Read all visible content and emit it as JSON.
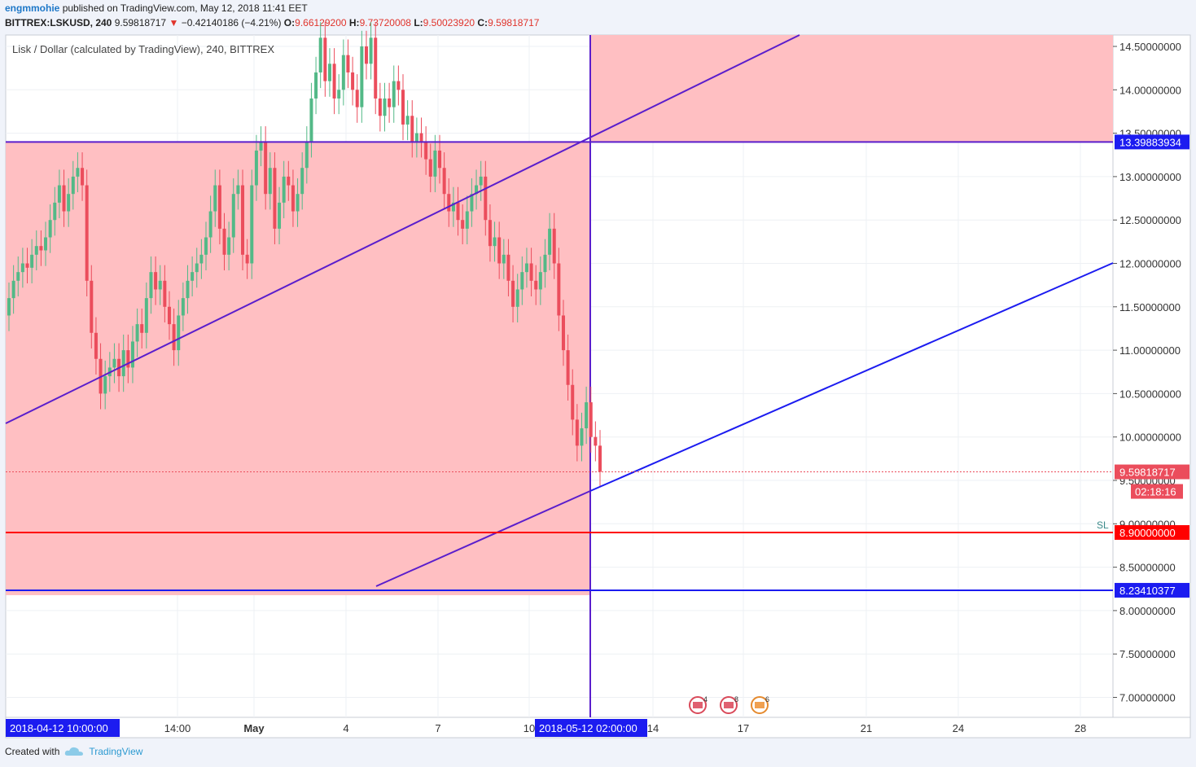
{
  "header": {
    "author": "engmmohie",
    "published": "published on TradingView.com, May 12, 2018 11:41 EET",
    "symbol": "BITTREX:LSKUSD, 240",
    "last": "9.59818717",
    "change": "−0.42140186 (−4.21%)",
    "o_label": "O:",
    "o": "9.66129200",
    "h_label": "H:",
    "h": "9.73720008",
    "l_label": "L:",
    "l": "9.50023920",
    "c_label": "C:",
    "c": "9.59818717"
  },
  "footer": {
    "created_with": "Created with",
    "brand": "TradingView"
  },
  "colors": {
    "up": "#53b987",
    "down": "#eb4d5c",
    "zone": "#ffbfc2",
    "blue_line": "#1c1cf0",
    "purple_line": "#5a1ecc",
    "stop": "#ff0000",
    "axis_label_bg": "#1c1cf0"
  },
  "chart_data": {
    "type": "candlestick",
    "title": "Lisk / Dollar (calculated by TradingView), 240, BITTREX",
    "ylim": [
      6.75,
      14.7
    ],
    "y_ticks": [
      "14.50000000",
      "14.00000000",
      "13.50000000",
      "13.00000000",
      "12.50000000",
      "12.00000000",
      "11.50000000",
      "11.00000000",
      "10.50000000",
      "10.00000000",
      "9.50000000",
      "9.00000000",
      "8.50000000",
      "8.00000000",
      "7.50000000",
      "7.00000000"
    ],
    "x_ticks": [
      "14:00",
      "May",
      "4",
      "7",
      "10",
      "14",
      "17",
      "21",
      "24",
      "28"
    ],
    "horizontal_levels": [
      {
        "name": "upper-level",
        "value": 13.39883934,
        "label": "13.39883934"
      },
      {
        "name": "stop-loss",
        "value": 8.9,
        "label": "8.90000000",
        "tag": "SL"
      },
      {
        "name": "lower-level",
        "value": 8.23410377,
        "label": "8.23410377"
      }
    ],
    "last_price": {
      "value": 9.59818717,
      "label": "9.59818717",
      "countdown": "02:18:16"
    },
    "x_markers": {
      "start": "2018-04-12 10:00:00",
      "end": "2018-05-12 02:00:00"
    },
    "event_badges": [
      {
        "count": "4"
      },
      {
        "count": "8"
      },
      {
        "count": "6"
      }
    ],
    "candle_closes": [
      11.6,
      11.8,
      11.9,
      12.0,
      11.95,
      12.1,
      12.2,
      12.15,
      12.3,
      12.5,
      12.7,
      12.9,
      12.6,
      12.8,
      13.0,
      13.1,
      12.9,
      11.8,
      11.2,
      10.9,
      10.5,
      10.7,
      10.8,
      10.9,
      10.7,
      11.0,
      10.8,
      11.1,
      11.3,
      11.2,
      11.6,
      11.9,
      11.7,
      11.8,
      11.5,
      11.3,
      11.0,
      11.4,
      11.6,
      11.8,
      11.9,
      12.0,
      12.1,
      12.3,
      12.6,
      12.9,
      12.4,
      12.1,
      12.3,
      12.8,
      12.9,
      12.1,
      12.0,
      12.9,
      13.3,
      13.4,
      12.8,
      13.1,
      12.4,
      12.7,
      13.0,
      12.9,
      12.6,
      12.8,
      13.1,
      13.4,
      13.9,
      14.2,
      14.6,
      14.1,
      14.3,
      13.9,
      14.0,
      14.4,
      14.2,
      14.0,
      13.8,
      14.5,
      14.3,
      14.6,
      13.9,
      13.7,
      13.9,
      13.8,
      14.1,
      14.0,
      13.6,
      13.7,
      13.4,
      13.5,
      13.4,
      13.2,
      13.0,
      13.3,
      13.1,
      12.8,
      12.6,
      12.7,
      12.5,
      12.4,
      12.6,
      12.8,
      12.9,
      13.0,
      12.5,
      12.2,
      12.3,
      12.0,
      12.1,
      11.8,
      11.5,
      11.7,
      11.9,
      12.0,
      11.8,
      11.7,
      11.9,
      12.1,
      12.4,
      12.0,
      11.4,
      11.0,
      10.6,
      10.2,
      9.9,
      10.1,
      10.4,
      10.0,
      9.9,
      9.6
    ]
  }
}
